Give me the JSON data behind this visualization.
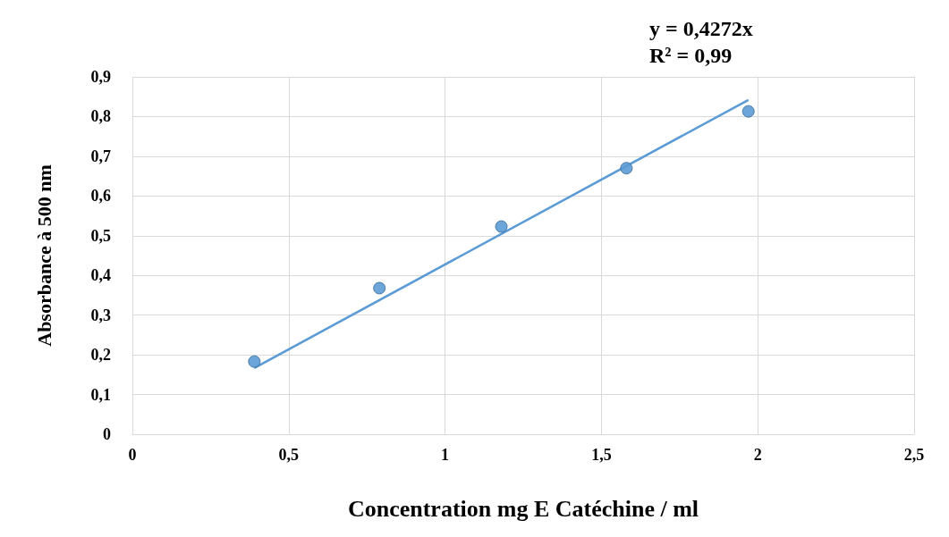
{
  "chart_data": {
    "type": "scatter",
    "xlabel": "Concentration mg E Catéchine / ml",
    "ylabel": "Absorbance à 500 nm",
    "annotations": [
      "y = 0,4272x",
      "R² = 0,99"
    ],
    "x": [
      0.39,
      0.79,
      1.18,
      1.58,
      1.97
    ],
    "series": [
      {
        "color": "#5b9bd5",
        "values": [
          0.183,
          0.368,
          0.523,
          0.67,
          0.813
        ]
      },
      {
        "type": "line",
        "color": "#5b9bd5",
        "x": [
          0.39,
          1.97
        ],
        "values": [
          0.167,
          0.842
        ],
        "marker": "none"
      }
    ],
    "xlim": [
      0,
      2.5
    ],
    "xticks": [
      0,
      {
        "value": 0.5,
        "label": "0,5"
      },
      1,
      {
        "value": 1.5,
        "label": "1,5"
      },
      2,
      {
        "value": 2.5,
        "label": "2,5"
      }
    ],
    "ylim": [
      0,
      0.9
    ],
    "yticks": [
      0,
      {
        "value": 0.1,
        "label": "0,1"
      },
      {
        "value": 0.2,
        "label": "0,2"
      },
      {
        "value": 0.3,
        "label": "0,3"
      },
      {
        "value": 0.4,
        "label": "0,4"
      },
      {
        "value": 0.5,
        "label": "0,5"
      },
      {
        "value": 0.6,
        "label": "0,6"
      },
      {
        "value": 0.7,
        "label": "0,7"
      },
      {
        "value": 0.8,
        "label": "0,8"
      },
      {
        "value": 0.9,
        "label": "0,9"
      }
    ],
    "grid": true,
    "marker": "circle"
  }
}
